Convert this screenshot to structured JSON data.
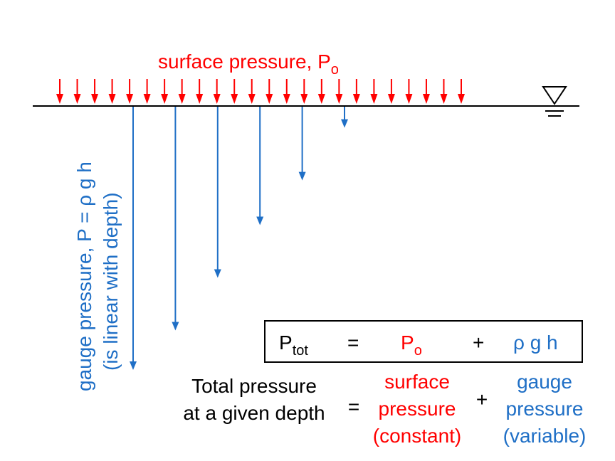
{
  "colors": {
    "surface": "#ff0000",
    "gauge": "#1f6fc6",
    "ink": "#000000"
  },
  "surface_label": {
    "text": "surface pressure, P",
    "subscript": "o"
  },
  "surface_arrow_count": 24,
  "gauge_label": {
    "line1": "gauge pressure, P = ρ g h",
    "line2": "(is linear with depth)"
  },
  "gauge_arrows_relative_depth": [
    1.0,
    0.85,
    0.65,
    0.45,
    0.28,
    0.08
  ],
  "free_surface_icon": "water-surface-triangle-icon",
  "equation": {
    "p_tot": {
      "symbol": "P",
      "subscript": "tot"
    },
    "equals": "=",
    "p_o": {
      "symbol": "P",
      "subscript": "o"
    },
    "plus": "+",
    "rho_g_h": "ρ g h"
  },
  "description": {
    "total": [
      "Total pressure",
      "at a given depth"
    ],
    "equals": "=",
    "surface": [
      "surface",
      "pressure",
      "(constant)"
    ],
    "plus": "+",
    "gauge": [
      "gauge",
      "pressure",
      "(variable)"
    ]
  }
}
